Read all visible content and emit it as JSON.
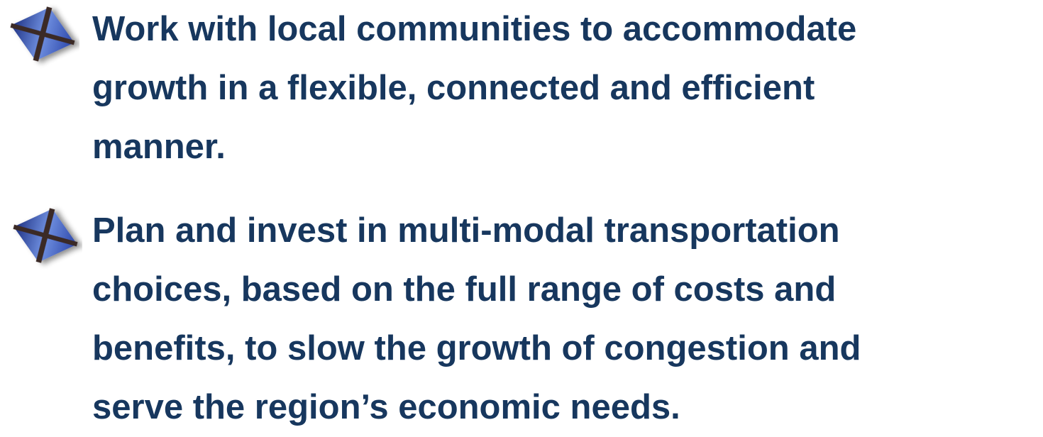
{
  "bullets": [
    {
      "lines": [
        "Work with local communities to accommodate",
        "growth in a flexible, connected and efficient",
        "manner."
      ]
    },
    {
      "lines": [
        "Plan and invest in multi-modal transportation",
        "choices, based on the full range of costs and",
        "benefits, to slow the growth of congestion and",
        "serve the region’s economic needs."
      ]
    }
  ]
}
